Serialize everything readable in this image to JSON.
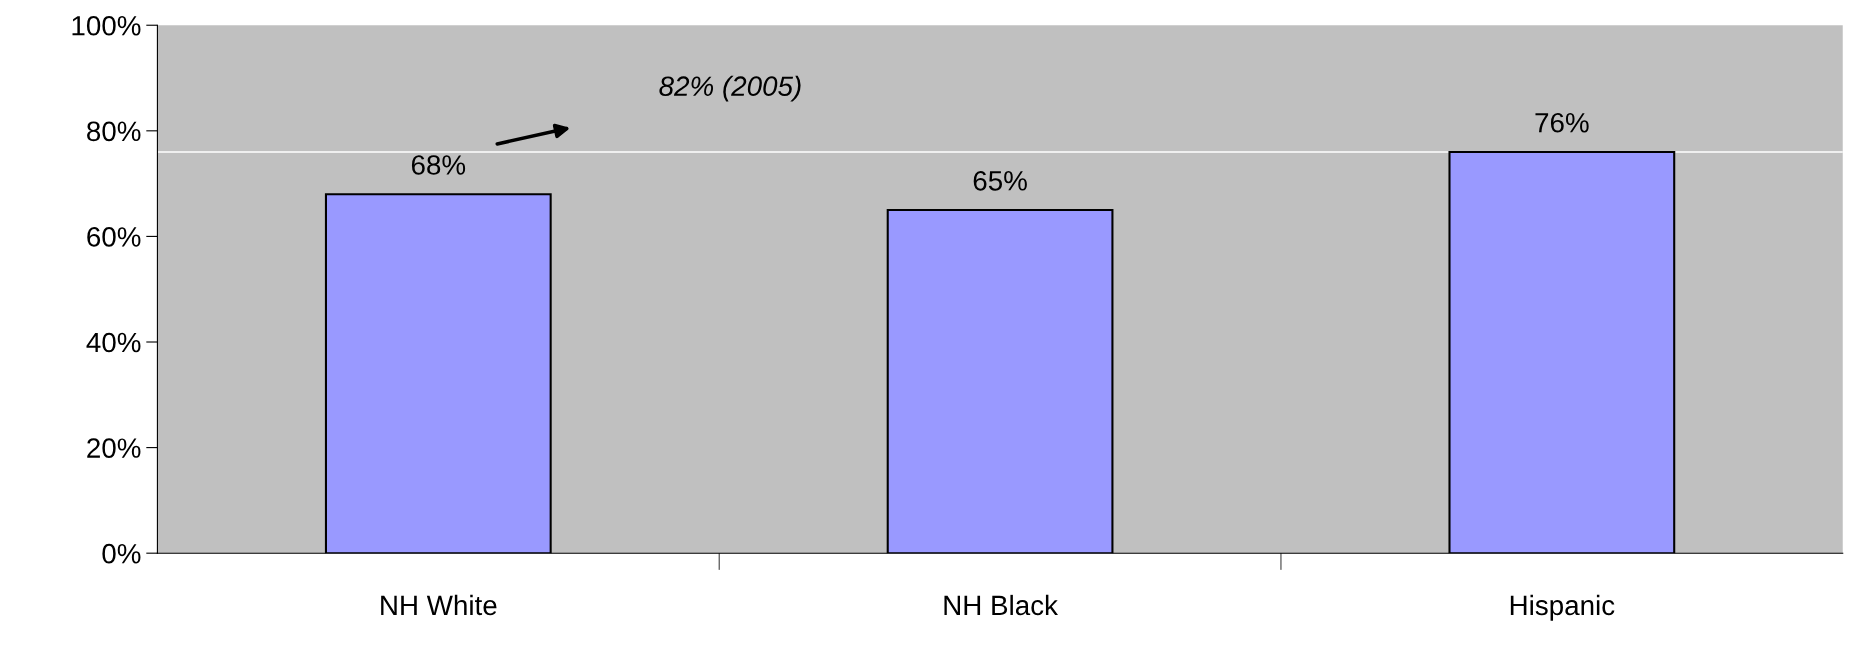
{
  "chart_data": {
    "type": "bar",
    "categories": [
      "NH White",
      "NH Black",
      "Hispanic"
    ],
    "values": [
      68,
      65,
      76
    ],
    "value_labels": [
      "68%",
      "65%",
      "76%"
    ],
    "color": "#9999ff",
    "ylim": [
      0,
      100
    ],
    "yticks": [
      {
        "value": 0,
        "label": "0%"
      },
      {
        "value": 20,
        "label": "20%"
      },
      {
        "value": 40,
        "label": "40%"
      },
      {
        "value": 60,
        "label": "60%"
      },
      {
        "value": 80,
        "label": "80%"
      },
      {
        "value": 100,
        "label": "100%"
      }
    ],
    "ref_lines": [
      {
        "axis": "y",
        "value": 76,
        "color": "#ffffff"
      }
    ],
    "annotations": [
      "82% (2005)"
    ],
    "grid": false,
    "legend": false
  }
}
